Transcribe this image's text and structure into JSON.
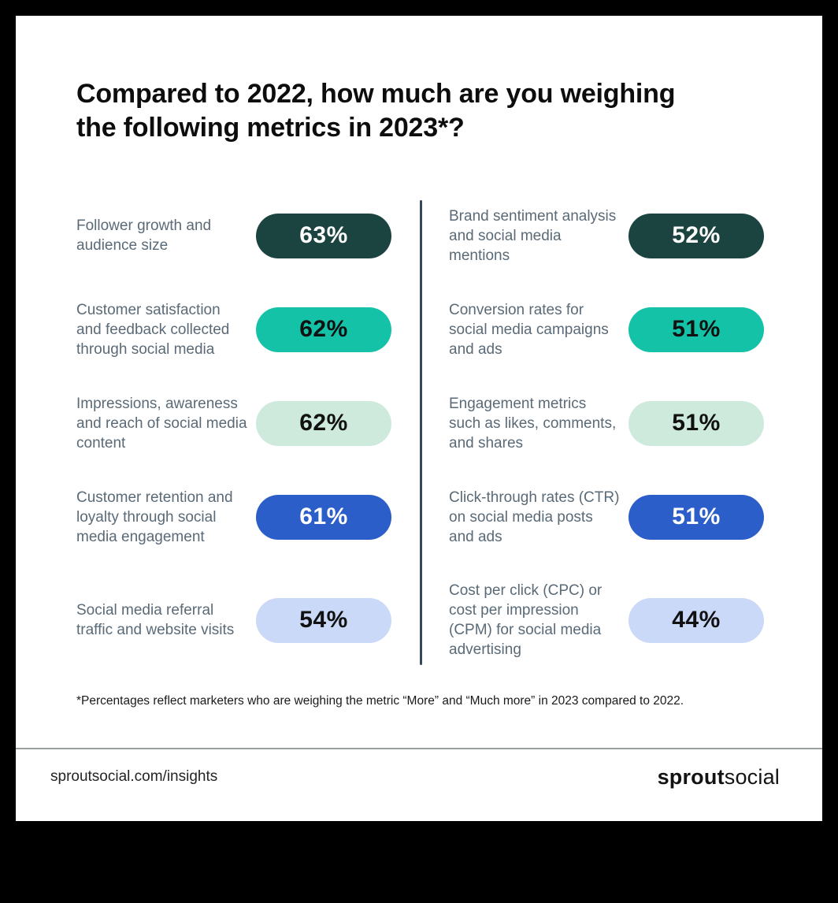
{
  "title": "Compared to 2022, how much are you weighing the following metrics in 2023*?",
  "footnote": "*Percentages reflect marketers who are weighing the metric “More” and “Much more” in 2023 compared to 2022.",
  "footer": {
    "url": "sproutsocial.com/insights",
    "brand_bold": "sprout",
    "brand_light": "social"
  },
  "colors": {
    "background": "#000000",
    "card": "#ffffff",
    "dark_teal": "#1b4440",
    "teal": "#14c3a7",
    "mint": "#cdeadd",
    "blue": "#2b5ec8",
    "periwinkle": "#c9d9f7",
    "label_text": "#5a6a77",
    "column_divider": "#33475e",
    "footer_rule": "#9aa0a0"
  },
  "chart_data": {
    "type": "bar",
    "title": "Compared to 2022, how much are you weighing the following metrics in 2023*?",
    "unit": "%",
    "value_range": [
      0,
      100
    ],
    "layout": {
      "columns": 2,
      "column_split": 5,
      "legend": "none",
      "grid": "off"
    },
    "categories": [
      "Follower growth and audience size",
      "Customer satisfaction and feedback collected through social media",
      "Impressions, awareness and reach of social media content",
      "Customer retention and loyalty through social media engagement",
      "Social media referral traffic and website visits",
      "Brand sentiment analysis and social media mentions",
      "Conversion rates for social media campaigns and ads",
      "Engagement metrics such as likes, comments, and shares",
      "Click-through rates (CTR) on social media posts and ads",
      "Cost per click (CPC) or cost per impression (CPM) for social media advertising"
    ],
    "values": [
      63,
      62,
      62,
      61,
      54,
      52,
      51,
      51,
      51,
      44
    ],
    "items": [
      {
        "label": "Follower growth and audience size",
        "value": 63,
        "value_label": "63%",
        "bg": "#1b4440",
        "fg": "#ffffff"
      },
      {
        "label": "Customer satisfaction and feedback collected through social media",
        "value": 62,
        "value_label": "62%",
        "bg": "#14c3a7",
        "fg": "#111111"
      },
      {
        "label": "Impressions, awareness and reach of social media content",
        "value": 62,
        "value_label": "62%",
        "bg": "#cdeadd",
        "fg": "#111111"
      },
      {
        "label": "Customer retention and loyalty through social media engagement",
        "value": 61,
        "value_label": "61%",
        "bg": "#2b5ec8",
        "fg": "#ffffff"
      },
      {
        "label": "Social media referral traffic and website visits",
        "value": 54,
        "value_label": "54%",
        "bg": "#c9d9f7",
        "fg": "#111111"
      },
      {
        "label": "Brand sentiment analysis and social media mentions",
        "value": 52,
        "value_label": "52%",
        "bg": "#1b4440",
        "fg": "#ffffff"
      },
      {
        "label": "Conversion rates for social media campaigns and ads",
        "value": 51,
        "value_label": "51%",
        "bg": "#14c3a7",
        "fg": "#111111"
      },
      {
        "label": "Engagement metrics such as likes, comments, and shares",
        "value": 51,
        "value_label": "51%",
        "bg": "#cdeadd",
        "fg": "#111111"
      },
      {
        "label": "Click-through rates (CTR) on social media posts and ads",
        "value": 51,
        "value_label": "51%",
        "bg": "#2b5ec8",
        "fg": "#ffffff"
      },
      {
        "label": "Cost per click (CPC) or cost per impression (CPM) for social media advertising",
        "value": 44,
        "value_label": "44%",
        "bg": "#c9d9f7",
        "fg": "#111111"
      }
    ]
  }
}
